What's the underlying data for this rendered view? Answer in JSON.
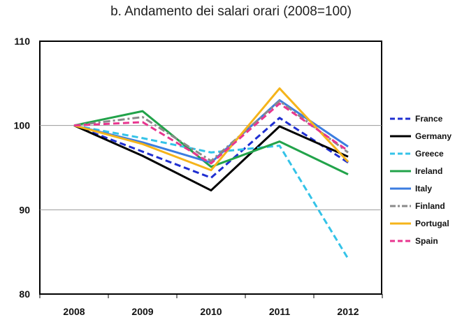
{
  "chart_data": {
    "type": "line",
    "title": "b. Andamento dei salari orari (2008=100)",
    "xlabel": "",
    "ylabel": "",
    "categories": [
      "2008",
      "2009",
      "2010",
      "2011",
      "2012"
    ],
    "ylim": [
      80,
      110
    ],
    "yticks": [
      80,
      90,
      100,
      110
    ],
    "grid": true,
    "legend_position": "right",
    "series": [
      {
        "name": "France",
        "color": "#1f2fd1",
        "dash": "dashed",
        "values": [
          100,
          96.9,
          93.8,
          100.9,
          95.6
        ]
      },
      {
        "name": "Germany",
        "color": "#000000",
        "dash": "solid",
        "values": [
          100,
          96.4,
          92.3,
          99.9,
          96.3
        ]
      },
      {
        "name": "Greece",
        "color": "#34c3e8",
        "dash": "dashed",
        "values": [
          100,
          98.5,
          96.8,
          97.6,
          84.2
        ]
      },
      {
        "name": "Ireland",
        "color": "#22a34a",
        "dash": "solid",
        "values": [
          100,
          101.7,
          95.1,
          98.1,
          94.2
        ]
      },
      {
        "name": "Italy",
        "color": "#3c7de0",
        "dash": "solid",
        "values": [
          100,
          98.0,
          95.6,
          103.0,
          97.5
        ]
      },
      {
        "name": "Finland",
        "color": "#8a8a8a",
        "dash": "dashdot",
        "values": [
          100,
          101.0,
          95.8,
          102.9,
          96.8
        ]
      },
      {
        "name": "Portugal",
        "color": "#f5b41a",
        "dash": "solid",
        "values": [
          100,
          97.8,
          94.7,
          104.4,
          95.7
        ]
      },
      {
        "name": "Spain",
        "color": "#e8368f",
        "dash": "dashed",
        "values": [
          100,
          100.4,
          95.5,
          102.6,
          97.0
        ]
      }
    ]
  }
}
